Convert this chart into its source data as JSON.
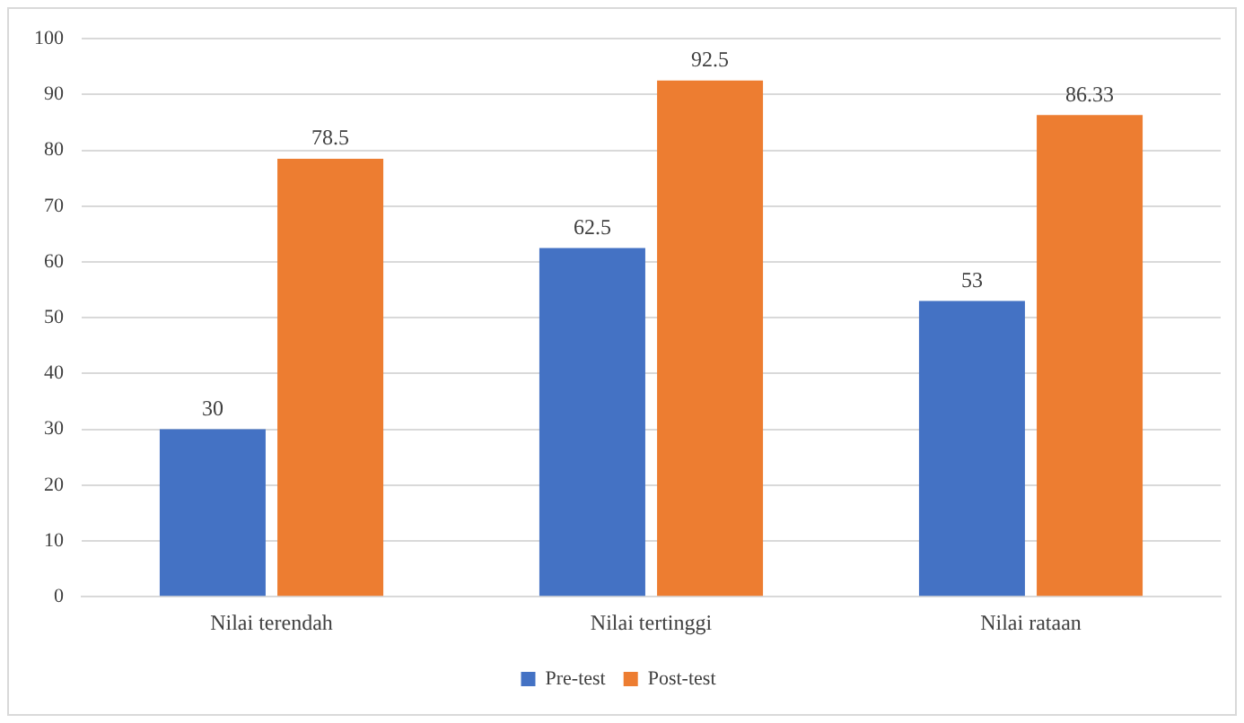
{
  "chart_data": {
    "type": "bar",
    "categories": [
      "Nilai terendah",
      "Nilai tertinggi",
      "Nilai rataan"
    ],
    "series": [
      {
        "name": "Pre-test",
        "color": "#4472c4",
        "values": [
          30,
          62.5,
          53
        ]
      },
      {
        "name": "Post-test",
        "color": "#ed7d31",
        "values": [
          78.5,
          92.5,
          86.33
        ]
      }
    ],
    "ylim": [
      0,
      100
    ],
    "yticks": [
      0,
      10,
      20,
      30,
      40,
      50,
      60,
      70,
      80,
      90,
      100
    ],
    "grid": "y",
    "legend": "bottom",
    "data_labels": true
  }
}
